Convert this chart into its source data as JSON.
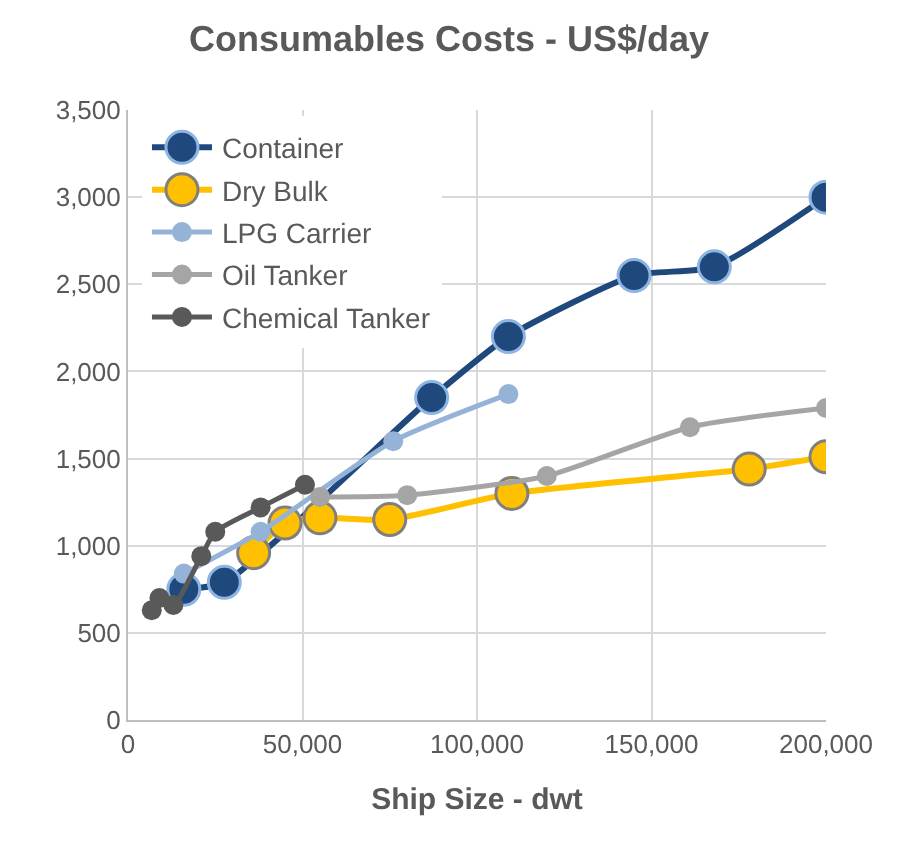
{
  "chart_data": {
    "type": "line",
    "title": "Consumables Costs - US$/day",
    "xlabel": "Ship Size - dwt",
    "xlim": [
      0,
      200000
    ],
    "xticks": [
      {
        "value": 0,
        "label": "0"
      },
      {
        "value": 50000,
        "label": "50,000"
      },
      {
        "value": 100000,
        "label": "100,000"
      },
      {
        "value": 150000,
        "label": "150,000"
      },
      {
        "value": 200000,
        "label": "200,000"
      }
    ],
    "ylim": [
      0,
      3500
    ],
    "yticks": [
      {
        "value": 0,
        "label": "0"
      },
      {
        "value": 500,
        "label": "500"
      },
      {
        "value": 1000,
        "label": "1,000"
      },
      {
        "value": 1500,
        "label": "1,500"
      },
      {
        "value": 2000,
        "label": "2,000"
      },
      {
        "value": 2500,
        "label": "2,500"
      },
      {
        "value": 3000,
        "label": "3,000"
      },
      {
        "value": 3500,
        "label": "3,500"
      }
    ],
    "grid": true,
    "legend": "top left",
    "marker": "circle",
    "line_style": "solid",
    "series": [
      {
        "name": "Container",
        "color": "#1f497d",
        "x": [
          16000,
          27600,
          87000,
          109000,
          145000,
          168000,
          200000
        ],
        "values": [
          750,
          790,
          1850,
          2200,
          2550,
          2600,
          3000
        ]
      },
      {
        "name": "Dry Bulk",
        "color": "#ffc000",
        "x": [
          36000,
          45000,
          55000,
          75000,
          110000,
          178000,
          200000
        ],
        "values": [
          960,
          1130,
          1160,
          1150,
          1300,
          1440,
          1510
        ]
      },
      {
        "name": "LPG Carrier",
        "color": "#95b3d7",
        "x": [
          16000,
          38000,
          76000,
          109000
        ],
        "values": [
          840,
          1080,
          1600,
          1870
        ]
      },
      {
        "name": "Oil Tanker",
        "color": "#a5a5a5",
        "x": [
          55000,
          80000,
          120000,
          161000,
          200000
        ],
        "values": [
          1280,
          1290,
          1400,
          1680,
          1790
        ]
      },
      {
        "name": "Chemical Tanker",
        "color": "#595959",
        "x": [
          6800,
          9000,
          13000,
          21000,
          25000,
          38000,
          50700
        ],
        "values": [
          630,
          700,
          660,
          940,
          1080,
          1220,
          1350
        ]
      }
    ]
  }
}
